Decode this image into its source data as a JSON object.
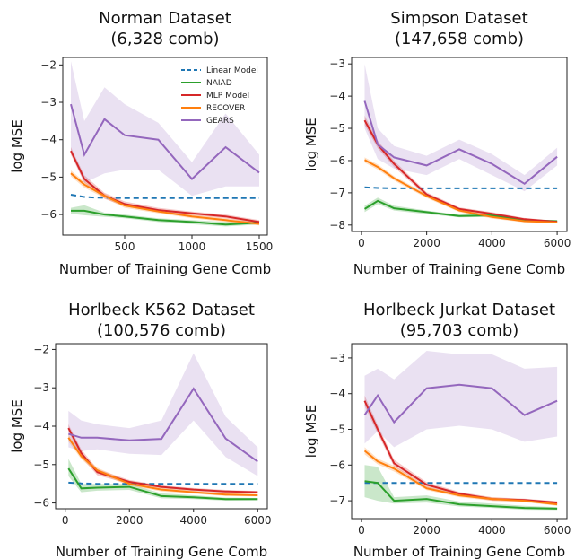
{
  "legend": [
    {
      "name": "Linear Model",
      "color": "#1f77b4",
      "dashed": true
    },
    {
      "name": "NAIAD",
      "color": "#2ca02c",
      "dashed": false
    },
    {
      "name": "MLP Model",
      "color": "#d62728",
      "dashed": false
    },
    {
      "name": "RECOVER",
      "color": "#ff7f0e",
      "dashed": false
    },
    {
      "name": "GEARS",
      "color": "#9467bd",
      "dashed": false
    }
  ],
  "chart_data": [
    {
      "type": "line",
      "title": "Norman Dataset",
      "subtitle": "(6,328 comb)",
      "xlabel": "Number of Training Gene Comb",
      "ylabel": "log MSE",
      "xlim": [
        40,
        1560
      ],
      "ylim": [
        -6.55,
        -1.8
      ],
      "xticks": [
        500,
        1000,
        1500
      ],
      "yticks": [
        -6,
        -5,
        -4,
        -3,
        -2
      ],
      "legend_position": "top-right",
      "series": [
        {
          "name": "Linear Model",
          "x": [
            100,
            200,
            300,
            500,
            750,
            1000,
            1250,
            1500
          ],
          "y": [
            -5.47,
            -5.53,
            -5.55,
            -5.56,
            -5.56,
            -5.56,
            -5.56,
            -5.56
          ]
        },
        {
          "name": "NAIAD",
          "x": [
            100,
            200,
            350,
            500,
            750,
            1000,
            1250,
            1500
          ],
          "y": [
            -5.9,
            -5.9,
            -6.0,
            -6.05,
            -6.15,
            -6.2,
            -6.27,
            -6.22
          ],
          "band_upper": [
            -5.82,
            -5.75,
            -5.95,
            -6.0,
            -6.1,
            -6.15,
            -6.2,
            -6.18
          ],
          "band_lower": [
            -5.98,
            -6.02,
            -6.06,
            -6.1,
            -6.2,
            -6.26,
            -6.32,
            -6.27
          ]
        },
        {
          "name": "MLP Model",
          "x": [
            100,
            200,
            350,
            500,
            750,
            1000,
            1250,
            1500
          ],
          "y": [
            -4.3,
            -5.05,
            -5.5,
            -5.72,
            -5.88,
            -5.97,
            -6.05,
            -6.2
          ],
          "band_upper": [
            -4.2,
            -4.95,
            -5.42,
            -5.65,
            -5.82,
            -5.92,
            -6.0,
            -6.15
          ],
          "band_lower": [
            -4.4,
            -5.15,
            -5.58,
            -5.78,
            -5.94,
            -6.02,
            -6.1,
            -6.25
          ]
        },
        {
          "name": "RECOVER",
          "x": [
            100,
            200,
            350,
            500,
            750,
            1000,
            1250,
            1500
          ],
          "y": [
            -4.9,
            -5.2,
            -5.5,
            -5.76,
            -5.92,
            -6.05,
            -6.15,
            -6.25
          ],
          "band_upper": [
            -4.82,
            -5.12,
            -5.44,
            -5.7,
            -5.87,
            -6.0,
            -6.1,
            -6.21
          ],
          "band_lower": [
            -4.98,
            -5.28,
            -5.56,
            -5.82,
            -5.97,
            -6.1,
            -6.2,
            -6.29
          ]
        },
        {
          "name": "GEARS",
          "x": [
            100,
            200,
            350,
            500,
            750,
            1000,
            1250,
            1500
          ],
          "y": [
            -3.05,
            -4.4,
            -3.45,
            -3.88,
            -4.0,
            -5.05,
            -4.2,
            -4.88
          ],
          "band_upper": [
            -1.9,
            -3.5,
            -2.6,
            -3.05,
            -3.55,
            -4.6,
            -3.3,
            -4.4
          ],
          "band_lower": [
            -4.35,
            -5.15,
            -4.9,
            -4.8,
            -4.8,
            -5.5,
            -5.25,
            -5.25
          ]
        }
      ]
    },
    {
      "type": "line",
      "title": "Simpson Dataset",
      "subtitle": "(147,658 comb)",
      "xlabel": "Number of Training Gene Comb",
      "ylabel": "log MSE",
      "xlim": [
        -300,
        6300
      ],
      "ylim": [
        -8.2,
        -2.8
      ],
      "xticks": [
        0,
        2000,
        4000,
        6000
      ],
      "yticks": [
        -8,
        -7,
        -6,
        -5,
        -4,
        -3
      ],
      "series": [
        {
          "name": "Linear Model",
          "x": [
            100,
            500,
            1000,
            2000,
            3000,
            4000,
            5000,
            6000
          ],
          "y": [
            -6.83,
            -6.85,
            -6.86,
            -6.86,
            -6.86,
            -6.86,
            -6.86,
            -6.86
          ]
        },
        {
          "name": "NAIAD",
          "x": [
            100,
            500,
            1000,
            2000,
            3000,
            4000,
            5000,
            6000
          ],
          "y": [
            -7.5,
            -7.25,
            -7.48,
            -7.6,
            -7.72,
            -7.7,
            -7.85,
            -7.88
          ],
          "band_upper": [
            -7.4,
            -7.15,
            -7.4,
            -7.55,
            -7.68,
            -7.66,
            -7.82,
            -7.85
          ],
          "band_lower": [
            -7.6,
            -7.35,
            -7.55,
            -7.66,
            -7.76,
            -7.75,
            -7.88,
            -7.92
          ]
        },
        {
          "name": "MLP Model",
          "x": [
            100,
            500,
            1000,
            2000,
            3000,
            4000,
            5000,
            6000
          ],
          "y": [
            -4.75,
            -5.5,
            -6.1,
            -7.05,
            -7.5,
            -7.65,
            -7.82,
            -7.9
          ],
          "band_upper": [
            -4.6,
            -5.38,
            -6.0,
            -6.98,
            -7.45,
            -7.6,
            -7.78,
            -7.87
          ],
          "band_lower": [
            -4.9,
            -5.62,
            -6.2,
            -7.12,
            -7.55,
            -7.7,
            -7.86,
            -7.93
          ]
        },
        {
          "name": "RECOVER",
          "x": [
            100,
            500,
            1000,
            2000,
            3000,
            4000,
            5000,
            6000
          ],
          "y": [
            -5.98,
            -6.2,
            -6.55,
            -7.1,
            -7.55,
            -7.75,
            -7.88,
            -7.92
          ],
          "band_upper": [
            -5.9,
            -6.12,
            -6.48,
            -7.04,
            -7.5,
            -7.7,
            -7.84,
            -7.89
          ],
          "band_lower": [
            -6.06,
            -6.28,
            -6.62,
            -7.16,
            -7.6,
            -7.8,
            -7.92,
            -7.95
          ]
        },
        {
          "name": "GEARS",
          "x": [
            100,
            500,
            1000,
            2000,
            3000,
            4000,
            5000,
            6000
          ],
          "y": [
            -4.15,
            -5.5,
            -5.9,
            -6.15,
            -5.65,
            -6.1,
            -6.72,
            -5.88
          ],
          "band_upper": [
            -3.0,
            -5.0,
            -5.55,
            -5.85,
            -5.35,
            -5.8,
            -6.45,
            -5.6
          ],
          "band_lower": [
            -5.0,
            -5.95,
            -6.25,
            -6.45,
            -5.95,
            -6.45,
            -6.95,
            -6.15
          ]
        }
      ]
    },
    {
      "type": "line",
      "title": "Horlbeck K562 Dataset",
      "subtitle": "(100,576 comb)",
      "xlabel": "Number of Training Gene Comb",
      "ylabel": "log MSE",
      "xlim": [
        -300,
        6300
      ],
      "ylim": [
        -6.15,
        -1.85
      ],
      "xticks": [
        0,
        2000,
        4000,
        6000
      ],
      "yticks": [
        -6,
        -5,
        -4,
        -3,
        -2
      ],
      "series": [
        {
          "name": "Linear Model",
          "x": [
            100,
            500,
            1000,
            2000,
            3000,
            4000,
            5000,
            6000
          ],
          "y": [
            -5.47,
            -5.49,
            -5.5,
            -5.5,
            -5.5,
            -5.5,
            -5.5,
            -5.5
          ]
        },
        {
          "name": "NAIAD",
          "x": [
            100,
            500,
            1000,
            2000,
            3000,
            4000,
            5000,
            6000
          ],
          "y": [
            -5.1,
            -5.62,
            -5.6,
            -5.58,
            -5.82,
            -5.85,
            -5.9,
            -5.9
          ],
          "band_upper": [
            -4.85,
            -5.5,
            -5.5,
            -5.5,
            -5.75,
            -5.8,
            -5.86,
            -5.87
          ],
          "band_lower": [
            -5.3,
            -5.72,
            -5.68,
            -5.66,
            -5.88,
            -5.9,
            -5.94,
            -5.93
          ]
        },
        {
          "name": "MLP Model",
          "x": [
            100,
            500,
            1000,
            2000,
            3000,
            4000,
            5000,
            6000
          ],
          "y": [
            -4.05,
            -4.7,
            -5.2,
            -5.45,
            -5.58,
            -5.65,
            -5.7,
            -5.72
          ],
          "band_upper": [
            -3.95,
            -4.6,
            -5.12,
            -5.4,
            -5.54,
            -5.61,
            -5.66,
            -5.69
          ],
          "band_lower": [
            -4.15,
            -4.8,
            -5.28,
            -5.5,
            -5.62,
            -5.69,
            -5.74,
            -5.75
          ]
        },
        {
          "name": "RECOVER",
          "x": [
            100,
            500,
            1000,
            2000,
            3000,
            4000,
            5000,
            6000
          ],
          "y": [
            -4.3,
            -4.78,
            -5.15,
            -5.5,
            -5.65,
            -5.72,
            -5.78,
            -5.8
          ],
          "band_upper": [
            -4.2,
            -4.7,
            -5.08,
            -5.45,
            -5.6,
            -5.68,
            -5.74,
            -5.77
          ],
          "band_lower": [
            -4.4,
            -4.86,
            -5.22,
            -5.55,
            -5.7,
            -5.76,
            -5.82,
            -5.83
          ]
        },
        {
          "name": "GEARS",
          "x": [
            100,
            500,
            1000,
            2000,
            3000,
            4000,
            5000,
            6000
          ],
          "y": [
            -4.2,
            -4.3,
            -4.3,
            -4.37,
            -4.33,
            -3.02,
            -4.32,
            -4.92
          ],
          "band_upper": [
            -3.6,
            -3.85,
            -3.95,
            -4.05,
            -3.85,
            -2.1,
            -3.75,
            -4.55
          ],
          "band_lower": [
            -4.55,
            -4.65,
            -4.6,
            -4.72,
            -4.75,
            -3.85,
            -4.8,
            -5.3
          ]
        }
      ]
    },
    {
      "type": "line",
      "title": "Horlbeck Jurkat Dataset",
      "subtitle": "(95,703 comb)",
      "xlabel": "Number of Training Gene Comb",
      "ylabel": "log MSE",
      "xlim": [
        -300,
        6300
      ],
      "ylim": [
        -7.5,
        -2.6
      ],
      "xticks": [
        0,
        2000,
        4000,
        6000
      ],
      "yticks": [
        -7,
        -6,
        -5,
        -4,
        -3
      ],
      "series": [
        {
          "name": "Linear Model",
          "x": [
            100,
            500,
            1000,
            2000,
            3000,
            4000,
            5000,
            6000
          ],
          "y": [
            -6.5,
            -6.5,
            -6.5,
            -6.5,
            -6.5,
            -6.5,
            -6.5,
            -6.5
          ]
        },
        {
          "name": "NAIAD",
          "x": [
            100,
            500,
            1000,
            2000,
            3000,
            4000,
            5000,
            6000
          ],
          "y": [
            -6.45,
            -6.5,
            -7.0,
            -6.95,
            -7.1,
            -7.15,
            -7.2,
            -7.22
          ],
          "band_upper": [
            -6.0,
            -6.05,
            -6.9,
            -6.85,
            -7.02,
            -7.08,
            -7.14,
            -7.18
          ],
          "band_lower": [
            -6.9,
            -7.0,
            -7.08,
            -7.05,
            -7.16,
            -7.2,
            -7.25,
            -7.26
          ]
        },
        {
          "name": "MLP Model",
          "x": [
            100,
            500,
            1000,
            2000,
            3000,
            4000,
            5000,
            6000
          ],
          "y": [
            -4.2,
            -5.0,
            -5.95,
            -6.55,
            -6.8,
            -6.95,
            -6.98,
            -7.05
          ],
          "band_upper": [
            -4.05,
            -4.88,
            -5.85,
            -6.48,
            -6.75,
            -6.9,
            -6.94,
            -7.01
          ],
          "band_lower": [
            -4.35,
            -5.12,
            -6.05,
            -6.62,
            -6.85,
            -7.0,
            -7.02,
            -7.09
          ]
        },
        {
          "name": "RECOVER",
          "x": [
            100,
            500,
            1000,
            2000,
            3000,
            4000,
            5000,
            6000
          ],
          "y": [
            -5.6,
            -5.9,
            -6.1,
            -6.65,
            -6.85,
            -6.95,
            -7.0,
            -7.1
          ],
          "band_upper": [
            -5.5,
            -5.82,
            -6.02,
            -6.6,
            -6.8,
            -6.9,
            -6.96,
            -7.06
          ],
          "band_lower": [
            -5.7,
            -5.98,
            -6.18,
            -6.7,
            -6.9,
            -7.0,
            -7.04,
            -7.14
          ]
        },
        {
          "name": "GEARS",
          "x": [
            100,
            500,
            1000,
            2000,
            3000,
            4000,
            5000,
            6000
          ],
          "y": [
            -4.6,
            -4.05,
            -4.8,
            -3.85,
            -3.75,
            -3.85,
            -4.6,
            -4.2
          ],
          "band_upper": [
            -3.5,
            -3.3,
            -3.6,
            -2.8,
            -2.9,
            -2.9,
            -3.3,
            -3.25
          ],
          "band_lower": [
            -5.4,
            -5.05,
            -5.5,
            -5.0,
            -4.9,
            -5.0,
            -5.35,
            -5.2
          ]
        }
      ]
    }
  ]
}
